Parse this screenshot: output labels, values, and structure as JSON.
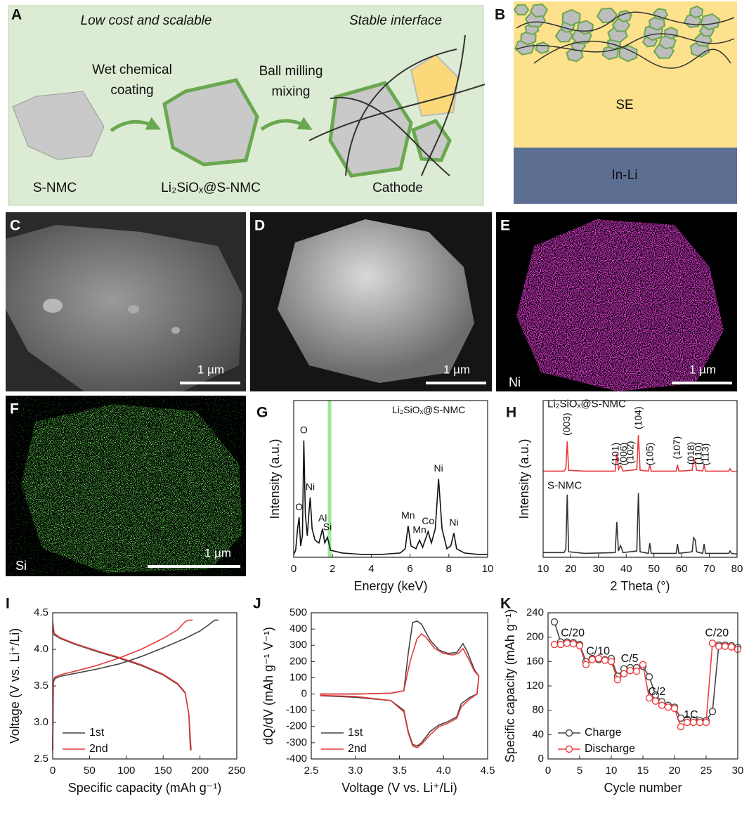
{
  "panels": {
    "A": {
      "label": "A",
      "caption_left": "Low cost and scalable",
      "caption_right": "Stable interface",
      "step1": [
        "Wet chemical",
        "coating"
      ],
      "step2": [
        "Ball milling",
        "mixing"
      ],
      "names": [
        "S-NMC",
        "Li₂SiOₓ@S-NMC",
        "Cathode"
      ]
    },
    "B": {
      "label": "B",
      "layers": [
        "SE",
        "In-Li"
      ]
    },
    "C": {
      "label": "C",
      "scale": "1 µm"
    },
    "D": {
      "label": "D",
      "scale": "1 µm"
    },
    "E": {
      "label": "E",
      "scale": "1 µm",
      "element": "Ni"
    },
    "F": {
      "label": "F",
      "scale": "1 µm",
      "element": "Si"
    }
  },
  "chart_data": [
    {
      "type": "line",
      "panel": "G",
      "xlabel": "Energy (keV)",
      "ylabel": "Intensity (a.u.)",
      "xlim": [
        0,
        10
      ],
      "xticks": [
        0,
        2,
        4,
        6,
        8,
        10
      ],
      "ylim": [
        0,
        1.1
      ],
      "highlight": {
        "x": 1.85,
        "color": "#9be89b"
      },
      "annotations": [
        {
          "text": "Li₂SiOₓ@S-NMC",
          "x": 6.96,
          "y": 1.03
        }
      ],
      "x": [
        0,
        0.1,
        0.2,
        0.28,
        0.36,
        0.45,
        0.52,
        0.6,
        0.7,
        0.78,
        0.85,
        0.95,
        1.1,
        1.3,
        1.49,
        1.6,
        1.74,
        1.9,
        2.5,
        3.5,
        4.5,
        5.5,
        5.75,
        5.9,
        6.05,
        6.3,
        6.49,
        6.65,
        6.93,
        7.1,
        7.3,
        7.47,
        7.65,
        7.9,
        8.1,
        8.26,
        8.4,
        8.8,
        9.5,
        10
      ],
      "series": [
        {
          "color": "#111111",
          "values": [
            0.02,
            0.05,
            0.2,
            0.28,
            0.08,
            0.15,
            0.82,
            0.3,
            0.15,
            0.3,
            0.42,
            0.2,
            0.12,
            0.1,
            0.2,
            0.1,
            0.14,
            0.05,
            0.03,
            0.02,
            0.02,
            0.03,
            0.06,
            0.22,
            0.08,
            0.06,
            0.12,
            0.07,
            0.18,
            0.1,
            0.2,
            0.55,
            0.2,
            0.06,
            0.08,
            0.17,
            0.06,
            0.03,
            0.02,
            0.02
          ]
        }
      ],
      "peaks": [
        {
          "label": "O",
          "x": 0.28
        },
        {
          "label": "O",
          "x": 0.52
        },
        {
          "label": "Ni",
          "x": 0.85
        },
        {
          "label": "Al",
          "x": 1.49
        },
        {
          "label": "Si",
          "x": 1.74
        },
        {
          "label": "Mn",
          "x": 5.9
        },
        {
          "label": "Mn",
          "x": 6.49
        },
        {
          "label": "Co",
          "x": 6.93
        },
        {
          "label": "Ni",
          "x": 7.47
        },
        {
          "label": "Ni",
          "x": 8.26
        }
      ]
    },
    {
      "type": "line",
      "panel": "H",
      "xlabel": "2 Theta (°)",
      "ylabel": "Intensity (a.u.)",
      "xlim": [
        10,
        80
      ],
      "xticks": [
        10,
        20,
        30,
        40,
        50,
        60,
        70,
        80
      ],
      "ylim": [
        0,
        2
      ],
      "legend": "inline",
      "x": [
        10,
        17.5,
        18.2,
        18.7,
        19.2,
        25,
        36,
        36.6,
        37.2,
        37.9,
        38.3,
        38.8,
        43.8,
        44.4,
        45,
        48,
        48.5,
        49,
        58,
        58.5,
        59,
        63.8,
        64.3,
        64.9,
        65.4,
        67.6,
        68.1,
        68.6,
        77,
        77.5,
        78,
        80
      ],
      "series": [
        {
          "name": "Li₂SiOₓ@S-NMC",
          "color": "#e8393a",
          "values": [
            1.1,
            1.1,
            1.13,
            1.48,
            1.11,
            1.1,
            1.1,
            1.32,
            1.12,
            1.17,
            1.15,
            1.1,
            1.12,
            1.56,
            1.11,
            1.1,
            1.18,
            1.1,
            1.1,
            1.18,
            1.1,
            1.11,
            1.26,
            1.22,
            1.11,
            1.1,
            1.18,
            1.1,
            1.1,
            1.13,
            1.1,
            1.09
          ]
        },
        {
          "name": "S-NMC",
          "color": "#333333",
          "values": [
            0.06,
            0.06,
            0.1,
            0.8,
            0.07,
            0.05,
            0.06,
            0.45,
            0.08,
            0.15,
            0.12,
            0.06,
            0.08,
            0.82,
            0.07,
            0.05,
            0.18,
            0.05,
            0.05,
            0.17,
            0.05,
            0.07,
            0.25,
            0.22,
            0.07,
            0.05,
            0.17,
            0.05,
            0.05,
            0.08,
            0.05,
            0.04
          ]
        }
      ],
      "peaks": [
        {
          "label": "(003)",
          "x": 18.7
        },
        {
          "label": "(101)",
          "x": 36.3
        },
        {
          "label": "(006)",
          "x": 39.2
        },
        {
          "label": "(102)",
          "x": 41.6
        },
        {
          "label": "(104)",
          "x": 44.6
        },
        {
          "label": "(105)",
          "x": 48.8
        },
        {
          "label": "(107)",
          "x": 58.5
        },
        {
          "label": "(018)",
          "x": 63.6
        },
        {
          "label": "(110)",
          "x": 66.2
        },
        {
          "label": "(113)",
          "x": 68.8
        }
      ]
    },
    {
      "type": "line",
      "panel": "I",
      "xlabel": "Specific capacity (mAh g⁻¹)",
      "ylabel": "Voltage (V vs. Li⁺/Li)",
      "xlim": [
        0,
        250
      ],
      "xticks": [
        0,
        50,
        100,
        150,
        200,
        250
      ],
      "ylim": [
        2.5,
        4.5
      ],
      "yticks": [
        2.5,
        {
          "value": 3,
          "label": "3.0"
        },
        3.5,
        {
          "value": 4,
          "label": "4.0"
        },
        4.5
      ],
      "legend": "lower left",
      "series": [
        {
          "name": "1st",
          "color": "#444444",
          "x": [
            0,
            1,
            3,
            10,
            30,
            60,
            90,
            120,
            150,
            180,
            200,
            215,
            220,
            225,
            null,
            0,
            2,
            10,
            30,
            60,
            90,
            120,
            150,
            170,
            180,
            185,
            187
          ],
          "values": [
            2.62,
            3.55,
            3.6,
            3.63,
            3.67,
            3.73,
            3.8,
            3.9,
            4.02,
            4.15,
            4.25,
            4.36,
            4.4,
            4.4,
            null,
            4.32,
            4.2,
            4.15,
            4.07,
            3.97,
            3.88,
            3.78,
            3.65,
            3.52,
            3.4,
            3.1,
            2.62
          ]
        },
        {
          "name": "2nd",
          "color": "#e8393a",
          "x": [
            0,
            1,
            3,
            10,
            30,
            60,
            90,
            120,
            150,
            170,
            180,
            185,
            190,
            null,
            0,
            2,
            10,
            30,
            60,
            90,
            120,
            150,
            170,
            180,
            185,
            188
          ],
          "values": [
            2.62,
            3.58,
            3.62,
            3.65,
            3.7,
            3.78,
            3.88,
            4.0,
            4.15,
            4.27,
            4.38,
            4.4,
            4.4,
            null,
            4.38,
            4.22,
            4.16,
            4.08,
            3.98,
            3.89,
            3.79,
            3.66,
            3.53,
            3.41,
            3.1,
            2.62
          ]
        }
      ]
    },
    {
      "type": "line",
      "panel": "J",
      "xlabel": "Voltage (V vs. Li⁺/Li)",
      "ylabel": "dQ/dV (mAh g⁻¹ V⁻¹)",
      "xlim": [
        2.5,
        4.5
      ],
      "xticks": [
        2.5,
        {
          "value": 3,
          "label": "3.0"
        },
        3.5,
        {
          "value": 4,
          "label": "4.0"
        },
        4.5
      ],
      "ylim": [
        -400,
        500
      ],
      "yticks": [
        -400,
        -300,
        -200,
        -100,
        0,
        100,
        200,
        300,
        400,
        500
      ],
      "legend": "lower left",
      "series": [
        {
          "name": "1st",
          "color": "#444444",
          "x": [
            2.6,
            3.0,
            3.4,
            3.55,
            3.6,
            3.65,
            3.7,
            3.75,
            3.85,
            3.95,
            4.05,
            4.15,
            4.22,
            4.27,
            4.35,
            4.4,
            4.38,
            4.3,
            4.2,
            4.15,
            4.05,
            3.95,
            3.85,
            3.75,
            3.7,
            3.65,
            3.6,
            3.55,
            3.4,
            3.0,
            2.6
          ],
          "values": [
            0,
            0,
            5,
            20,
            250,
            440,
            450,
            430,
            330,
            270,
            250,
            255,
            310,
            260,
            150,
            110,
            0,
            -20,
            -60,
            -140,
            -170,
            -190,
            -230,
            -300,
            -320,
            -310,
            -230,
            -100,
            -40,
            -20,
            -10
          ]
        },
        {
          "name": "2nd",
          "color": "#e8393a",
          "x": [
            2.6,
            3.0,
            3.4,
            3.55,
            3.62,
            3.7,
            3.75,
            3.8,
            3.9,
            4.0,
            4.1,
            4.17,
            4.22,
            4.28,
            4.35,
            4.4,
            4.38,
            4.3,
            4.2,
            4.15,
            4.05,
            3.95,
            3.85,
            3.75,
            3.7,
            3.65,
            3.6,
            3.55,
            3.4,
            3.0,
            2.6
          ],
          "values": [
            0,
            0,
            5,
            20,
            200,
            340,
            370,
            350,
            280,
            250,
            240,
            250,
            280,
            220,
            140,
            110,
            0,
            -30,
            -80,
            -150,
            -180,
            -200,
            -250,
            -310,
            -330,
            -320,
            -240,
            -110,
            -40,
            -15,
            -8
          ]
        }
      ]
    },
    {
      "type": "line",
      "panel": "K",
      "markers": true,
      "xlabel": "Cycle number",
      "ylabel": "Specific capacity (mAh g⁻¹)",
      "xlim": [
        0,
        30
      ],
      "xticks": [
        0,
        5,
        10,
        15,
        20,
        25,
        30
      ],
      "ylim": [
        0,
        240
      ],
      "yticks": [
        0,
        40,
        80,
        120,
        160,
        200,
        240
      ],
      "legend": "lower left",
      "annotations": [
        {
          "text": "C/20",
          "x": 3.9,
          "y": 206
        },
        {
          "text": "C/10",
          "x": 7.9,
          "y": 176
        },
        {
          "text": "C/5",
          "x": 12.9,
          "y": 164
        },
        {
          "text": "C/2",
          "x": 17.2,
          "y": 110
        },
        {
          "text": "1C",
          "x": 22.6,
          "y": 72
        },
        {
          "text": "C/20",
          "x": 26.7,
          "y": 206
        }
      ],
      "x": [
        1,
        2,
        3,
        4,
        5,
        6,
        7,
        8,
        9,
        10,
        11,
        12,
        13,
        14,
        15,
        16,
        17,
        18,
        19,
        20,
        21,
        22,
        23,
        24,
        25,
        26,
        27,
        28,
        29,
        30
      ],
      "series": [
        {
          "name": "Charge",
          "color": "#444444",
          "values": [
            225,
            192,
            192,
            191,
            188,
            160,
            165,
            163,
            163,
            165,
            136,
            148,
            150,
            150,
            152,
            135,
            105,
            94,
            88,
            85,
            67,
            65,
            64,
            63,
            63,
            78,
            187,
            187,
            186,
            183
          ]
        },
        {
          "name": "Discharge",
          "color": "#f03c3c",
          "values": [
            188,
            188,
            190,
            189,
            186,
            155,
            163,
            165,
            162,
            160,
            130,
            140,
            145,
            144,
            155,
            100,
            95,
            88,
            85,
            83,
            53,
            60,
            60,
            60,
            60,
            190,
            185,
            185,
            184,
            180
          ]
        }
      ]
    }
  ]
}
